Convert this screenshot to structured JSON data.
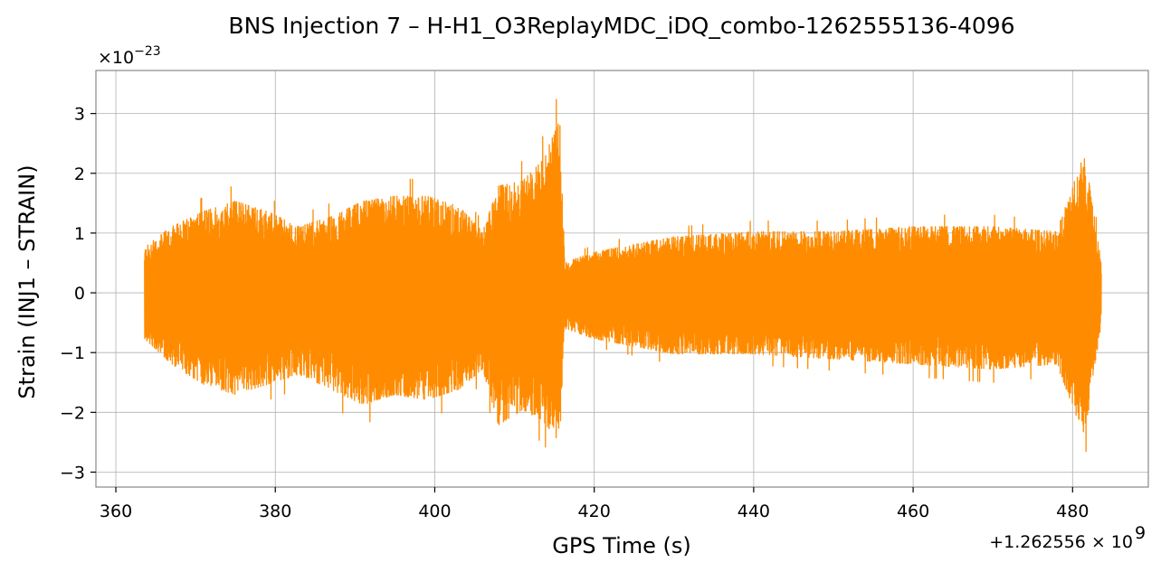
{
  "chart_data": {
    "type": "line",
    "title": "BNS Injection 7 – H-H1_O3ReplayMDC_iDQ_combo-1262555136-4096",
    "xlabel": "GPS Time (s)",
    "ylabel": "Strain (INJ1 – STRAIN)",
    "x_offset_text": "+1.262556 × 10",
    "x_offset_exp": "9",
    "y_scale_text": "×10",
    "y_scale_exp": "−23",
    "xlim": [
      357.5,
      489.5
    ],
    "ylim": [
      -3.25,
      3.72
    ],
    "x_ticks": [
      360,
      380,
      400,
      420,
      440,
      460,
      480
    ],
    "x_tick_labels": [
      "360",
      "380",
      "400",
      "420",
      "440",
      "460",
      "480"
    ],
    "y_ticks": [
      -3,
      -2,
      -1,
      0,
      1,
      2,
      3
    ],
    "y_tick_labels": [
      "−3",
      "−2",
      "−1",
      "0",
      "1",
      "2",
      "3"
    ],
    "grid": true,
    "series": [
      {
        "color": "#ff8c00",
        "x_range": [
          363.6,
          483.6
        ],
        "envelope": [
          {
            "x": 363.6,
            "upper": 0.9,
            "lower": -0.9
          },
          {
            "x": 367.0,
            "upper": 1.3,
            "lower": -1.4
          },
          {
            "x": 371.0,
            "upper": 1.6,
            "lower": -1.8
          },
          {
            "x": 375.0,
            "upper": 1.8,
            "lower": -2.0
          },
          {
            "x": 379.0,
            "upper": 1.6,
            "lower": -1.8
          },
          {
            "x": 383.0,
            "upper": 1.3,
            "lower": -1.6
          },
          {
            "x": 387.0,
            "upper": 1.5,
            "lower": -1.9
          },
          {
            "x": 391.0,
            "upper": 1.8,
            "lower": -2.2
          },
          {
            "x": 395.0,
            "upper": 1.9,
            "lower": -2.0
          },
          {
            "x": 399.0,
            "upper": 1.9,
            "lower": -2.1
          },
          {
            "x": 403.0,
            "upper": 1.7,
            "lower": -1.9
          },
          {
            "x": 406.0,
            "upper": 1.2,
            "lower": -1.5
          },
          {
            "x": 408.0,
            "upper": 2.1,
            "lower": -2.6
          },
          {
            "x": 411.0,
            "upper": 2.2,
            "lower": -2.3
          },
          {
            "x": 413.5,
            "upper": 2.6,
            "lower": -2.5
          },
          {
            "x": 415.7,
            "upper": 3.4,
            "lower": -2.95
          },
          {
            "x": 416.3,
            "upper": 0.6,
            "lower": -0.7
          },
          {
            "x": 420.0,
            "upper": 0.8,
            "lower": -0.9
          },
          {
            "x": 430.0,
            "upper": 1.1,
            "lower": -1.2
          },
          {
            "x": 440.0,
            "upper": 1.2,
            "lower": -1.2
          },
          {
            "x": 450.0,
            "upper": 1.2,
            "lower": -1.3
          },
          {
            "x": 460.0,
            "upper": 1.3,
            "lower": -1.4
          },
          {
            "x": 470.0,
            "upper": 1.3,
            "lower": -1.5
          },
          {
            "x": 478.0,
            "upper": 1.2,
            "lower": -1.4
          },
          {
            "x": 481.5,
            "upper": 2.75,
            "lower": -2.85
          },
          {
            "x": 483.6,
            "upper": 0.6,
            "lower": -0.6
          }
        ]
      }
    ]
  }
}
